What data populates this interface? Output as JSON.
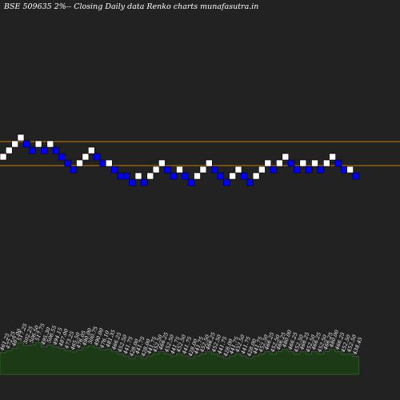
{
  "title": "BSE 509635 2%-- Closing Daily data  Renko  charts munafasutra.in",
  "colors": {
    "background": "#222222",
    "up_brick": "#ffffff",
    "down_brick": "#0000ff",
    "band_line": "#cc7a00",
    "volume_fill": "#1c3a16",
    "volume_line": "#2e6b24",
    "label_text": "#ffffff"
  },
  "chart_data": [
    {
      "type": "renko",
      "brick_colors": {
        "up": "white",
        "down": "blue"
      },
      "reference_lines": 2,
      "bricks": [
        {
          "dir": "up",
          "level": 0
        },
        {
          "dir": "up",
          "level": 1
        },
        {
          "dir": "up",
          "level": 2
        },
        {
          "dir": "up",
          "level": 3
        },
        {
          "dir": "down",
          "level": 2
        },
        {
          "dir": "down",
          "level": 1
        },
        {
          "dir": "up",
          "level": 2
        },
        {
          "dir": "down",
          "level": 1
        },
        {
          "dir": "up",
          "level": 2
        },
        {
          "dir": "down",
          "level": 1
        },
        {
          "dir": "down",
          "level": 0
        },
        {
          "dir": "down",
          "level": -1
        },
        {
          "dir": "down",
          "level": -2
        },
        {
          "dir": "up",
          "level": -1
        },
        {
          "dir": "up",
          "level": 0
        },
        {
          "dir": "up",
          "level": 1
        },
        {
          "dir": "down",
          "level": 0
        },
        {
          "dir": "down",
          "level": -1
        },
        {
          "dir": "up",
          "level": -1
        },
        {
          "dir": "down",
          "level": -2
        },
        {
          "dir": "down",
          "level": -3
        },
        {
          "dir": "down",
          "level": -3
        },
        {
          "dir": "down",
          "level": -4
        },
        {
          "dir": "up",
          "level": -3
        },
        {
          "dir": "down",
          "level": -4
        },
        {
          "dir": "up",
          "level": -3
        },
        {
          "dir": "up",
          "level": -2
        },
        {
          "dir": "up",
          "level": -1
        },
        {
          "dir": "down",
          "level": -2
        },
        {
          "dir": "down",
          "level": -3
        },
        {
          "dir": "up",
          "level": -2
        },
        {
          "dir": "down",
          "level": -3
        },
        {
          "dir": "down",
          "level": -4
        },
        {
          "dir": "up",
          "level": -3
        },
        {
          "dir": "up",
          "level": -2
        },
        {
          "dir": "up",
          "level": -1
        },
        {
          "dir": "down",
          "level": -2
        },
        {
          "dir": "down",
          "level": -3
        },
        {
          "dir": "down",
          "level": -4
        },
        {
          "dir": "up",
          "level": -3
        },
        {
          "dir": "up",
          "level": -2
        },
        {
          "dir": "down",
          "level": -3
        },
        {
          "dir": "down",
          "level": -4
        },
        {
          "dir": "up",
          "level": -3
        },
        {
          "dir": "up",
          "level": -2
        },
        {
          "dir": "up",
          "level": -1
        },
        {
          "dir": "down",
          "level": -2
        },
        {
          "dir": "up",
          "level": -1
        },
        {
          "dir": "up",
          "level": 0
        },
        {
          "dir": "down",
          "level": -1
        },
        {
          "dir": "down",
          "level": -2
        },
        {
          "dir": "up",
          "level": -1
        },
        {
          "dir": "down",
          "level": -2
        },
        {
          "dir": "up",
          "level": -1
        },
        {
          "dir": "down",
          "level": -2
        },
        {
          "dir": "up",
          "level": -1
        },
        {
          "dir": "up",
          "level": 0
        },
        {
          "dir": "down",
          "level": -1
        },
        {
          "dir": "down",
          "level": -2
        },
        {
          "dir": "up",
          "level": -2
        },
        {
          "dir": "down",
          "level": -3
        }
      ]
    },
    {
      "type": "area",
      "series": [
        {
          "values": [
            461.25,
            472.25,
            487.0,
            517.25,
            502.25,
            506.5,
            517.75,
            495.3,
            506.55,
            494.15,
            487.0,
            473.25,
            465.5,
            476.05,
            490.0,
            500.75,
            490.0,
            476.1,
            481.35,
            466.25,
            452.5,
            441.75,
            428.0,
            441.75,
            428.0,
            441.75,
            452.5,
            466.25,
            452.5,
            441.75,
            452.5,
            441.75,
            428.0,
            441.75,
            452.5,
            466.25,
            452.5,
            441.75,
            428.0,
            441.75,
            452.5,
            441.75,
            428.0,
            441.75,
            452.5,
            466.25,
            452.5,
            466.25,
            480.0,
            466.25,
            452.5,
            466.25,
            452.5,
            466.25,
            452.5,
            466.25,
            480.0,
            466.25,
            452.5,
            452.5,
            438.45
          ]
        }
      ],
      "labels": [
        "461.25",
        "472.25",
        "487.00",
        "517.25",
        "502.25",
        "506.50",
        "517.75",
        "495.30",
        "506.55",
        "494.15",
        "487.00",
        "473.25",
        "465.50",
        "476.05",
        "490.00",
        "500.75",
        "490.00",
        "476.10",
        "481.35",
        "466.25",
        "452.50",
        "441.75",
        "428.00",
        "441.75",
        "428.00",
        "441.75",
        "452.50",
        "466.25",
        "452.50",
        "441.75",
        "452.50",
        "441.75",
        "428.00",
        "441.75",
        "452.50",
        "466.25",
        "452.50",
        "441.75",
        "428.00",
        "441.75",
        "452.50",
        "441.75",
        "428.00",
        "441.75",
        "452.50",
        "466.25",
        "452.50",
        "466.25",
        "480.00",
        "466.25",
        "452.50",
        "466.25",
        "452.50",
        "466.25",
        "452.50",
        "466.25",
        "480.00",
        "466.25",
        "452.50",
        "452.50",
        "438.45"
      ]
    }
  ]
}
